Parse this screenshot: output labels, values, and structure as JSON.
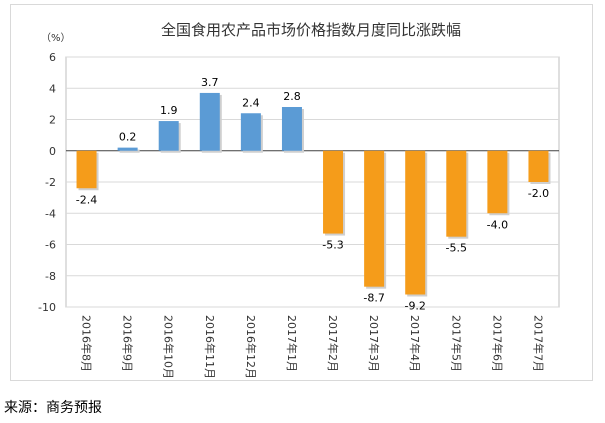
{
  "chart_data": {
    "type": "bar",
    "title": "全国食用农产品市场价格指数月度同比涨跌幅",
    "unit_label": "（%）",
    "xlabel": "",
    "ylabel": "（%）",
    "ylim": [
      -10,
      6
    ],
    "yticks": [
      6,
      4,
      2,
      0,
      -2,
      -4,
      -6,
      -8,
      -10
    ],
    "grid": true,
    "categories": [
      "2016年8月",
      "2016年9月",
      "2016年10月",
      "2016年11月",
      "2016年12月",
      "2017年1月",
      "2017年2月",
      "2017年3月",
      "2017年4月",
      "2017年5月",
      "2017年6月",
      "2017年7月"
    ],
    "values": [
      -2.4,
      0.2,
      1.9,
      3.7,
      2.4,
      2.8,
      -5.3,
      -8.7,
      -9.2,
      -5.5,
      -4.0,
      -2.0
    ],
    "value_labels": [
      "-2.4",
      "0.2",
      "1.9",
      "3.7",
      "2.4",
      "2.8",
      "-5.3",
      "-8.7",
      "-9.2",
      "-5.5",
      "-4.0",
      "-2.0"
    ],
    "bar_colors": [
      "#f59c1a",
      "#5b9bd5",
      "#5b9bd5",
      "#5b9bd5",
      "#5b9bd5",
      "#5b9bd5",
      "#f59c1a",
      "#f59c1a",
      "#f59c1a",
      "#f59c1a",
      "#f59c1a",
      "#f59c1a"
    ]
  },
  "footer": {
    "source": "来源：商务预报"
  }
}
